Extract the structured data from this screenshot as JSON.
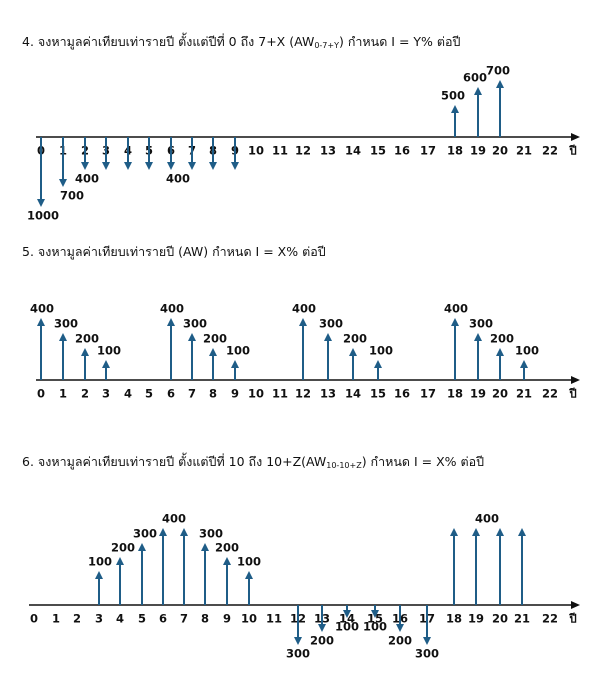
{
  "problems": [
    {
      "title": {
        "text": "4. จงหามูลค่าเทียบเท่ารายปี ตั้งแต่ปีที่ 0 ถึง 7+X (AW",
        "sub": "0-7+Y",
        "tail": ") กำหนด I = Y% ต่อปี"
      },
      "axis": {
        "ticks": [
          0,
          1,
          2,
          3,
          4,
          5,
          6,
          7,
          8,
          9,
          10,
          11,
          12,
          13,
          14,
          15,
          16,
          17,
          18,
          19,
          20,
          21,
          22
        ],
        "unit": "ปี"
      },
      "labels": [
        "1000",
        "700",
        "400",
        "400",
        "500",
        "600",
        "700"
      ]
    },
    {
      "title": {
        "text": "5. จงหามูลค่าเทียบเท่ารายปี (AW) กำหนด I = X% ต่อปี"
      },
      "axis": {
        "ticks": [
          0,
          1,
          2,
          3,
          4,
          5,
          6,
          7,
          8,
          9,
          10,
          11,
          12,
          13,
          14,
          15,
          16,
          17,
          18,
          19,
          20,
          21,
          22
        ],
        "unit": "ปี"
      },
      "labels": [
        "400",
        "300",
        "200",
        "100",
        "400",
        "300",
        "200",
        "100",
        "400",
        "300",
        "200",
        "100",
        "400",
        "300",
        "200",
        "100"
      ]
    },
    {
      "title": {
        "text": "6. จงหามูลค่าเทียบเท่ารายปี ตั้งแต่ปีที่ 10 ถึง 10+Z(AW",
        "sub": "10-10+Z",
        "tail": ") กำหนด I = X% ต่อปี"
      },
      "axis": {
        "ticks": [
          0,
          1,
          2,
          3,
          4,
          5,
          6,
          7,
          8,
          9,
          10,
          11,
          12,
          13,
          14,
          15,
          16,
          17,
          18,
          19,
          20,
          21,
          22
        ],
        "unit": "ปี"
      },
      "labels": [
        "100",
        "200",
        "300",
        "400",
        "300",
        "200",
        "100",
        "300",
        "200",
        "100",
        "100",
        "200",
        "300",
        "400"
      ]
    }
  ]
}
